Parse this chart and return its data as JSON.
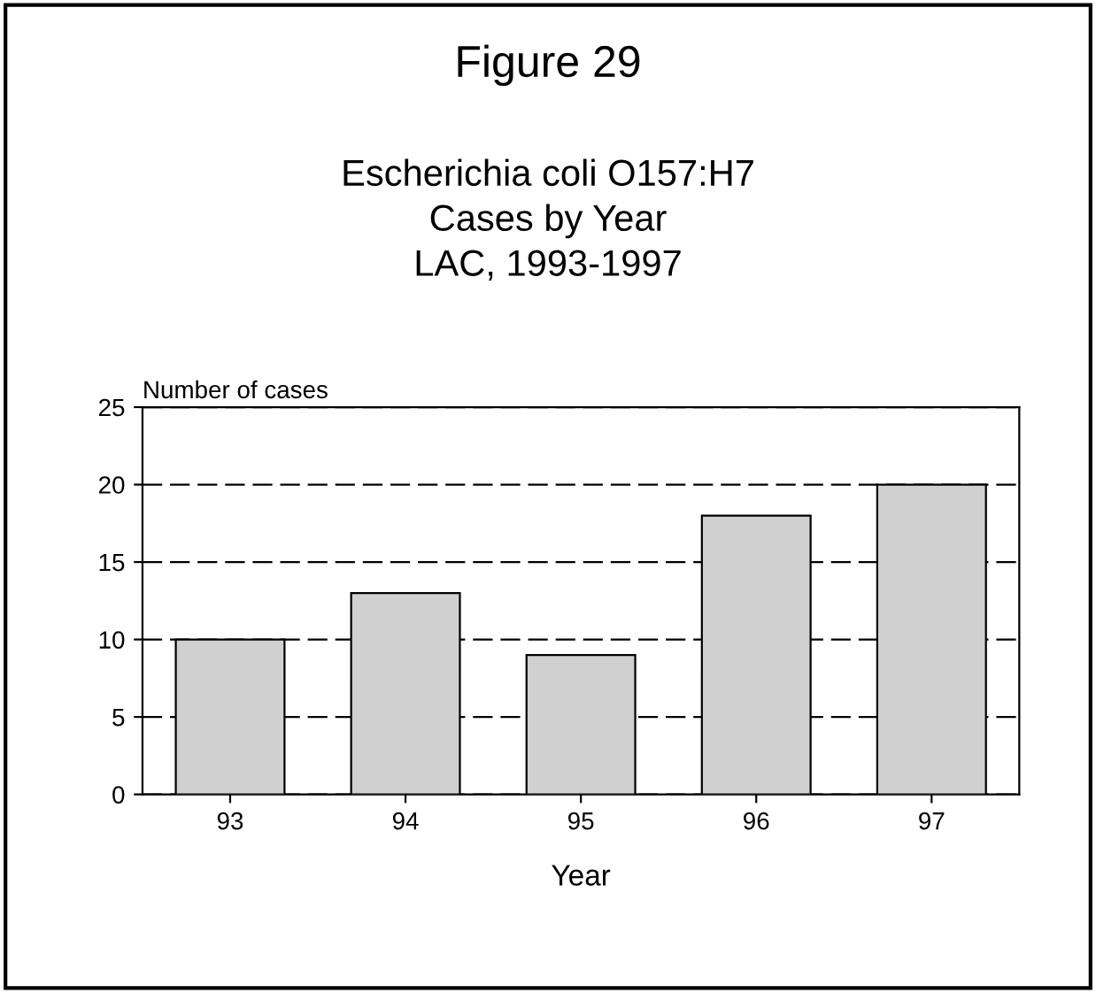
{
  "chart_data": {
    "type": "bar",
    "title": "Figure 29",
    "subtitle": "Escherichia coli O157:H7\nCases by Year\nLAC, 1993-1997",
    "ylabel": "Number of cases",
    "xlabel": "Year",
    "categories": [
      "93",
      "94",
      "95",
      "96",
      "97"
    ],
    "values": [
      10,
      13,
      9,
      18,
      20
    ],
    "color": "#d0d0d0",
    "ylim": [
      0,
      25
    ],
    "yticks": [
      0,
      5,
      10,
      15,
      20,
      25
    ],
    "grid": "y"
  }
}
